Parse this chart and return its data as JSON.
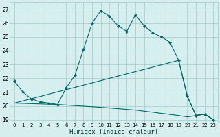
{
  "xlabel": "Humidex (Indice chaleur)",
  "background_color": "#d6eeee",
  "grid_color": "#aacfcf",
  "line_color": "#006868",
  "xlim": [
    -0.5,
    23.5
  ],
  "ylim": [
    18.8,
    27.5
  ],
  "yticks": [
    19,
    20,
    21,
    22,
    23,
    24,
    25,
    26,
    27
  ],
  "xticks": [
    0,
    1,
    2,
    3,
    4,
    5,
    6,
    7,
    8,
    9,
    10,
    11,
    12,
    13,
    14,
    15,
    16,
    17,
    18,
    19,
    20,
    21,
    22,
    23
  ],
  "series_main": {
    "x": [
      0,
      1,
      2,
      3,
      4,
      5,
      6,
      7,
      8,
      9,
      10,
      11,
      12,
      13,
      14,
      15,
      16,
      17,
      18,
      19,
      20,
      21,
      22,
      23
    ],
    "y": [
      21.8,
      21.0,
      20.5,
      20.3,
      20.2,
      20.1,
      21.3,
      22.2,
      24.1,
      26.0,
      26.9,
      26.5,
      25.8,
      25.4,
      26.6,
      25.8,
      25.3,
      25.0,
      24.6,
      23.3,
      20.7,
      19.3,
      19.4,
      19.0
    ]
  },
  "series_upper": {
    "x": [
      0,
      19,
      20,
      21,
      22,
      23
    ],
    "y": [
      20.2,
      23.3,
      20.7,
      19.3,
      19.4,
      19.0
    ]
  },
  "series_lower": {
    "x": [
      0,
      5,
      10,
      14,
      19,
      20,
      21,
      22,
      23
    ],
    "y": [
      20.2,
      20.1,
      19.9,
      19.7,
      19.3,
      19.2,
      19.3,
      19.4,
      19.0
    ]
  }
}
